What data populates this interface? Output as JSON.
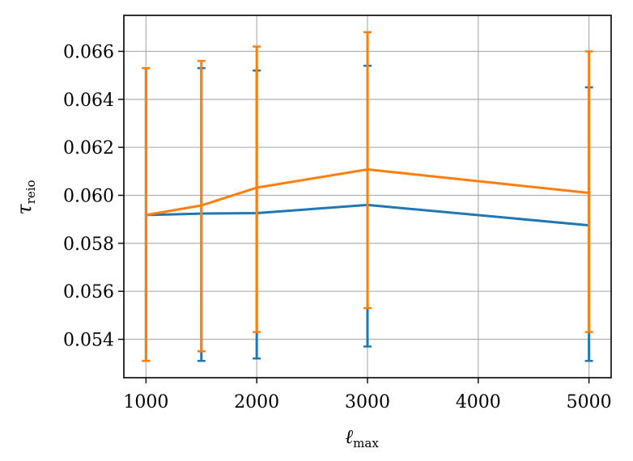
{
  "chart_data": {
    "type": "line",
    "title": "",
    "xlabel": "ℓ",
    "xlabel_sub": "max",
    "ylabel": "τ",
    "ylabel_sub": "reio",
    "xlim": [
      800,
      5200
    ],
    "ylim": [
      0.0524,
      0.0675
    ],
    "xticks": [
      1000,
      2000,
      3000,
      4000,
      5000
    ],
    "yticks": [
      0.054,
      0.056,
      0.058,
      0.06,
      0.062,
      0.064,
      0.066
    ],
    "ytick_labels": [
      "0.054",
      "0.056",
      "0.058",
      "0.060",
      "0.062",
      "0.064",
      "0.066"
    ],
    "grid": true,
    "x": [
      1000,
      1500,
      2000,
      3000,
      5000
    ],
    "series": [
      {
        "color": "#1f77b4",
        "values": [
          0.05918,
          0.05924,
          0.05926,
          0.0596,
          0.05875
        ],
        "err_low": [
          0.0531,
          0.0531,
          0.0532,
          0.0537,
          0.0531
        ],
        "err_high": [
          0.0653,
          0.0653,
          0.0652,
          0.0654,
          0.0645
        ]
      },
      {
        "color": "#ff7f0e",
        "values": [
          0.05918,
          0.05958,
          0.06032,
          0.06108,
          0.0601
        ],
        "err_low": [
          0.0531,
          0.0535,
          0.0543,
          0.0553,
          0.0543
        ],
        "err_high": [
          0.0653,
          0.0656,
          0.0662,
          0.0668,
          0.066
        ]
      }
    ]
  }
}
